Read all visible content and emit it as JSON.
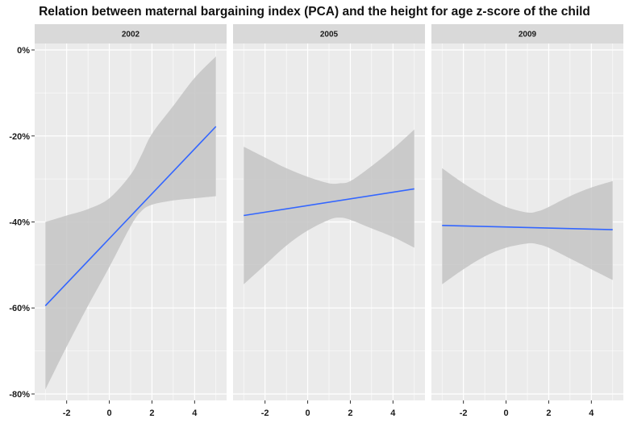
{
  "chart_data": {
    "type": "line",
    "title": "Relation between maternal bargaining index (PCA) and the height for age z-score of the child",
    "xlabel": "",
    "ylabel": "",
    "xlim": [
      -3.5,
      5.5
    ],
    "ylim": [
      -0.815,
      0.015
    ],
    "x_ticks": [
      -2,
      0,
      2,
      4
    ],
    "x_tick_labels": [
      "-2",
      "0",
      "2",
      "4"
    ],
    "y_ticks": [
      0,
      -0.2,
      -0.4,
      -0.6,
      -0.8
    ],
    "y_tick_labels": [
      "0%",
      "-20%",
      "-40%",
      "-60%",
      "-80%"
    ],
    "grid": true,
    "line_color": "#3366ff",
    "ribbon_color": "#c4c4c4",
    "panel_background": "#ebebeb",
    "strip_background": "#d9d9d9",
    "panels": [
      {
        "label": "2002",
        "fit": {
          "x": [
            -3.0,
            5.0
          ],
          "y": [
            -0.595,
            -0.178
          ]
        },
        "ribbon": {
          "x": [
            -3.0,
            -2.0,
            -1.0,
            0.0,
            1.0,
            1.5,
            2.0,
            3.0,
            4.0,
            5.0
          ],
          "upper": [
            -0.4,
            -0.385,
            -0.37,
            -0.345,
            -0.29,
            -0.245,
            -0.195,
            -0.13,
            -0.065,
            -0.015
          ],
          "lower": [
            -0.79,
            -0.69,
            -0.595,
            -0.505,
            -0.41,
            -0.375,
            -0.36,
            -0.35,
            -0.345,
            -0.34
          ]
        }
      },
      {
        "label": "2005",
        "fit": {
          "x": [
            -3.0,
            5.0
          ],
          "y": [
            -0.385,
            -0.323
          ]
        },
        "ribbon": {
          "x": [
            -3.0,
            -2.0,
            -1.0,
            0.0,
            1.0,
            1.5,
            2.0,
            3.0,
            4.0,
            5.0
          ],
          "upper": [
            -0.225,
            -0.25,
            -0.275,
            -0.295,
            -0.31,
            -0.31,
            -0.305,
            -0.27,
            -0.23,
            -0.185
          ],
          "lower": [
            -0.545,
            -0.5,
            -0.455,
            -0.42,
            -0.395,
            -0.39,
            -0.395,
            -0.415,
            -0.435,
            -0.46
          ]
        }
      },
      {
        "label": "2009",
        "fit": {
          "x": [
            -3.0,
            5.0
          ],
          "y": [
            -0.408,
            -0.418
          ]
        },
        "ribbon": {
          "x": [
            -3.0,
            -2.0,
            -1.0,
            0.0,
            1.0,
            1.5,
            2.0,
            3.0,
            4.0,
            5.0
          ],
          "upper": [
            -0.275,
            -0.31,
            -0.34,
            -0.365,
            -0.378,
            -0.375,
            -0.365,
            -0.34,
            -0.32,
            -0.305
          ],
          "lower": [
            -0.545,
            -0.51,
            -0.48,
            -0.46,
            -0.45,
            -0.452,
            -0.46,
            -0.485,
            -0.51,
            -0.535
          ]
        }
      }
    ]
  }
}
